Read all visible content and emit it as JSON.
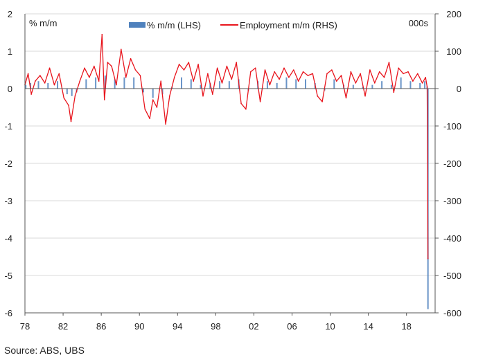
{
  "chart_data": {
    "type": "bar+line",
    "series": [
      {
        "name": "% m/m (LHS)",
        "kind": "bar",
        "axis": "left",
        "color": "#4f81bd",
        "points": [
          [
            "1978-02",
            0.1
          ],
          [
            "1978-08",
            0.15
          ],
          [
            "1979-06",
            0.2
          ],
          [
            "1980-06",
            0.15
          ],
          [
            "1981-06",
            0.2
          ],
          [
            "1982-06",
            -0.15
          ],
          [
            "1982-12",
            -0.2
          ],
          [
            "1983-06",
            -0.1
          ],
          [
            "1984-06",
            0.25
          ],
          [
            "1985-06",
            0.3
          ],
          [
            "1986-06",
            0.35
          ],
          [
            "1987-06",
            0.25
          ],
          [
            "1988-06",
            0.3
          ],
          [
            "1989-06",
            0.3
          ],
          [
            "1990-06",
            -0.1
          ],
          [
            "1991-06",
            -0.25
          ],
          [
            "1992-06",
            -0.15
          ],
          [
            "1993-06",
            0.05
          ],
          [
            "1994-06",
            0.3
          ],
          [
            "1995-06",
            0.25
          ],
          [
            "1996-06",
            0.1
          ],
          [
            "1997-06",
            0.15
          ],
          [
            "1998-06",
            0.2
          ],
          [
            "1999-06",
            0.2
          ],
          [
            "2000-06",
            0.25
          ],
          [
            "2001-06",
            -0.05
          ],
          [
            "2002-06",
            0.2
          ],
          [
            "2003-06",
            0.2
          ],
          [
            "2004-06",
            0.15
          ],
          [
            "2005-06",
            0.3
          ],
          [
            "2006-06",
            0.25
          ],
          [
            "2007-06",
            0.25
          ],
          [
            "2008-06",
            0.15
          ],
          [
            "2009-06",
            -0.05
          ],
          [
            "2010-06",
            0.25
          ],
          [
            "2011-06",
            0.1
          ],
          [
            "2012-06",
            0.1
          ],
          [
            "2013-06",
            0.05
          ],
          [
            "2014-06",
            0.1
          ],
          [
            "2015-06",
            0.2
          ],
          [
            "2016-06",
            0.1
          ],
          [
            "2017-06",
            0.3
          ],
          [
            "2018-06",
            0.2
          ],
          [
            "2019-06",
            0.15
          ],
          [
            "2019-12",
            0.2
          ],
          [
            "2020-03",
            0.05
          ],
          [
            "2020-04",
            -5.9
          ]
        ]
      },
      {
        "name": "Employment m/m (RHS)",
        "kind": "line",
        "axis": "right",
        "color": "#e8141c",
        "points": [
          [
            "1978-01",
            10
          ],
          [
            "1978-05",
            40
          ],
          [
            "1978-09",
            -15
          ],
          [
            "1979-02",
            20
          ],
          [
            "1979-08",
            35
          ],
          [
            "1980-02",
            15
          ],
          [
            "1980-08",
            55
          ],
          [
            "1981-02",
            10
          ],
          [
            "1981-08",
            40
          ],
          [
            "1982-02",
            -25
          ],
          [
            "1982-08",
            -45
          ],
          [
            "1982-11",
            -88
          ],
          [
            "1983-04",
            -20
          ],
          [
            "1983-10",
            20
          ],
          [
            "1984-04",
            55
          ],
          [
            "1984-10",
            30
          ],
          [
            "1985-04",
            60
          ],
          [
            "1985-10",
            20
          ],
          [
            "1986-02",
            145
          ],
          [
            "1986-05",
            -30
          ],
          [
            "1986-09",
            70
          ],
          [
            "1987-02",
            60
          ],
          [
            "1987-08",
            10
          ],
          [
            "1988-02",
            105
          ],
          [
            "1988-08",
            30
          ],
          [
            "1989-02",
            80
          ],
          [
            "1989-08",
            50
          ],
          [
            "1990-02",
            35
          ],
          [
            "1990-08",
            -55
          ],
          [
            "1991-02",
            -80
          ],
          [
            "1991-06",
            -30
          ],
          [
            "1991-11",
            -50
          ],
          [
            "1992-04",
            20
          ],
          [
            "1992-10",
            -95
          ],
          [
            "1993-03",
            -20
          ],
          [
            "1993-09",
            30
          ],
          [
            "1994-03",
            65
          ],
          [
            "1994-09",
            50
          ],
          [
            "1995-03",
            70
          ],
          [
            "1995-09",
            20
          ],
          [
            "1996-03",
            65
          ],
          [
            "1996-09",
            -20
          ],
          [
            "1997-03",
            40
          ],
          [
            "1997-09",
            -15
          ],
          [
            "1998-03",
            55
          ],
          [
            "1998-09",
            15
          ],
          [
            "1999-03",
            60
          ],
          [
            "1999-09",
            25
          ],
          [
            "2000-03",
            70
          ],
          [
            "2000-09",
            -40
          ],
          [
            "2001-03",
            -55
          ],
          [
            "2001-09",
            45
          ],
          [
            "2002-03",
            55
          ],
          [
            "2002-09",
            -35
          ],
          [
            "2003-03",
            50
          ],
          [
            "2003-09",
            10
          ],
          [
            "2004-03",
            45
          ],
          [
            "2004-09",
            25
          ],
          [
            "2005-03",
            55
          ],
          [
            "2005-09",
            30
          ],
          [
            "2006-03",
            50
          ],
          [
            "2006-09",
            20
          ],
          [
            "2007-03",
            45
          ],
          [
            "2007-09",
            35
          ],
          [
            "2008-03",
            40
          ],
          [
            "2008-09",
            -20
          ],
          [
            "2009-03",
            -35
          ],
          [
            "2009-09",
            40
          ],
          [
            "2010-03",
            50
          ],
          [
            "2010-09",
            20
          ],
          [
            "2011-03",
            35
          ],
          [
            "2011-09",
            -25
          ],
          [
            "2012-03",
            45
          ],
          [
            "2012-09",
            15
          ],
          [
            "2013-03",
            40
          ],
          [
            "2013-09",
            -20
          ],
          [
            "2014-03",
            50
          ],
          [
            "2014-09",
            15
          ],
          [
            "2015-03",
            45
          ],
          [
            "2015-09",
            30
          ],
          [
            "2016-03",
            70
          ],
          [
            "2016-09",
            -10
          ],
          [
            "2017-03",
            55
          ],
          [
            "2017-09",
            40
          ],
          [
            "2018-03",
            45
          ],
          [
            "2018-09",
            20
          ],
          [
            "2019-03",
            40
          ],
          [
            "2019-09",
            15
          ],
          [
            "2020-01",
            30
          ],
          [
            "2020-03",
            5
          ],
          [
            "2020-04",
            -455
          ]
        ]
      }
    ],
    "x_axis": {
      "type": "year",
      "range": [
        1978,
        2021
      ],
      "tick_years": [
        1978,
        1982,
        1986,
        1990,
        1994,
        1998,
        2002,
        2006,
        2010,
        2014,
        2018
      ],
      "tick_labels": [
        "78",
        "82",
        "86",
        "90",
        "94",
        "98",
        "02",
        "06",
        "10",
        "14",
        "18"
      ]
    },
    "y_left": {
      "label": "% m/m",
      "range": [
        -6,
        2
      ],
      "ticks": [
        2,
        1,
        0,
        -1,
        -2,
        -3,
        -4,
        -5,
        -6
      ]
    },
    "y_right": {
      "label": "000s",
      "range": [
        -600,
        200
      ],
      "ticks": [
        200,
        100,
        0,
        -100,
        -200,
        -300,
        -400,
        -500,
        -600
      ]
    },
    "grid": "horizontal",
    "legend_position": "top"
  },
  "source": "Source:   ABS, UBS"
}
